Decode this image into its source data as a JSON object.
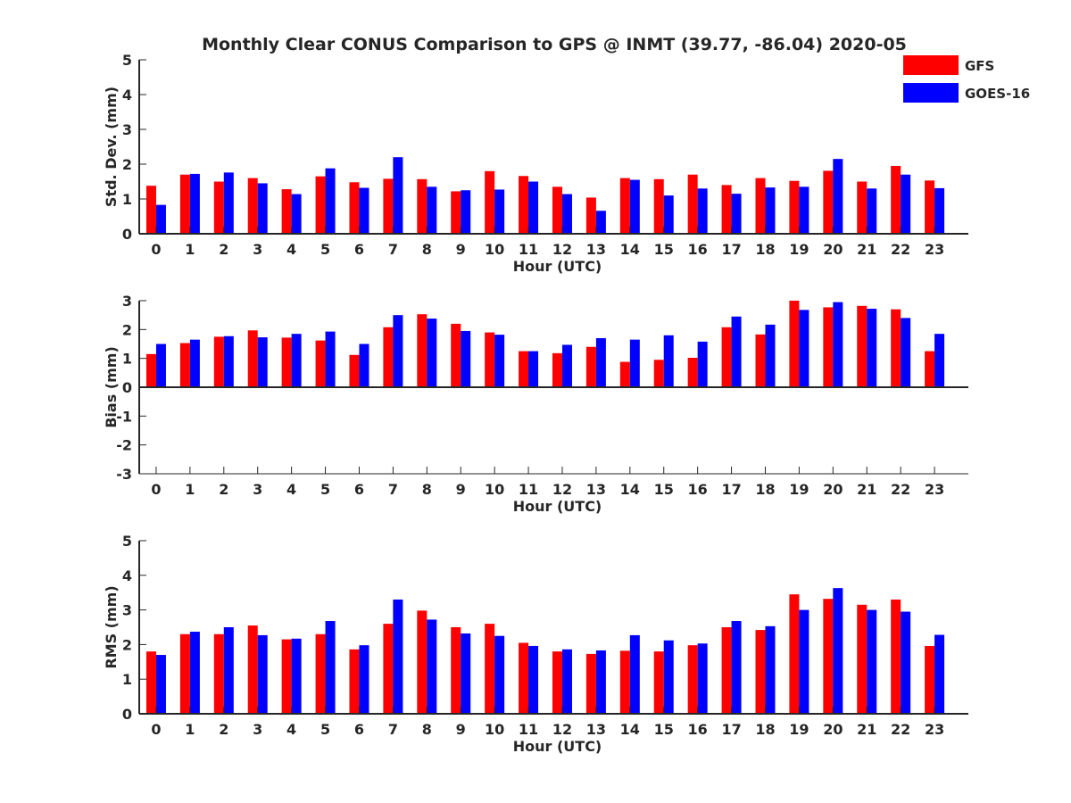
{
  "figure": {
    "title": "Monthly Clear CONUS Comparison to GPS @ INMT (39.77, -86.04) 2020-05"
  },
  "legend": {
    "placement": "top-right",
    "items": [
      {
        "label": "GFS",
        "color": "#ff0000"
      },
      {
        "label": "GOES-16",
        "color": "#0000ff"
      }
    ]
  },
  "chart_data": [
    {
      "type": "bar",
      "title": "Monthly Clear CONUS Comparison to GPS @ INMT (39.77, -86.04) 2020-05",
      "xlabel": "Hour (UTC)",
      "ylabel": "Std. Dev. (mm)",
      "ylim": [
        0,
        5
      ],
      "yticks": [
        "0",
        "1",
        "2",
        "3",
        "4",
        "5"
      ],
      "categories": [
        "0",
        "1",
        "2",
        "3",
        "4",
        "5",
        "6",
        "7",
        "8",
        "9",
        "10",
        "11",
        "12",
        "13",
        "14",
        "15",
        "16",
        "17",
        "18",
        "19",
        "20",
        "21",
        "22",
        "23"
      ],
      "series": [
        {
          "name": "GFS",
          "color": "#ff0000",
          "values": [
            1.38,
            1.7,
            1.5,
            1.6,
            1.28,
            1.65,
            1.48,
            1.58,
            1.57,
            1.22,
            1.8,
            1.66,
            1.35,
            1.04,
            1.6,
            1.57,
            1.7,
            1.4,
            1.6,
            1.52,
            1.81,
            1.5,
            1.95,
            1.53
          ]
        },
        {
          "name": "GOES-16",
          "color": "#0000ff",
          "values": [
            0.83,
            1.72,
            1.76,
            1.45,
            1.14,
            1.88,
            1.32,
            2.2,
            1.35,
            1.25,
            1.27,
            1.5,
            1.14,
            0.66,
            1.55,
            1.1,
            1.3,
            1.15,
            1.33,
            1.35,
            2.15,
            1.3,
            1.7,
            1.31
          ]
        }
      ]
    },
    {
      "type": "bar",
      "xlabel": "Hour (UTC)",
      "ylabel": "Bias (mm)",
      "ylim": [
        -3,
        3
      ],
      "yticks": [
        "-3",
        "-2",
        "-1",
        "0",
        "1",
        "2",
        "3"
      ],
      "categories": [
        "0",
        "1",
        "2",
        "3",
        "4",
        "5",
        "6",
        "7",
        "8",
        "9",
        "10",
        "11",
        "12",
        "13",
        "14",
        "15",
        "16",
        "17",
        "18",
        "19",
        "20",
        "21",
        "22",
        "23"
      ],
      "series": [
        {
          "name": "GFS",
          "color": "#ff0000",
          "values": [
            1.15,
            1.53,
            1.75,
            1.97,
            1.72,
            1.62,
            1.12,
            2.08,
            2.53,
            2.2,
            1.9,
            1.25,
            1.18,
            1.4,
            0.88,
            0.95,
            1.02,
            2.08,
            1.83,
            3.0,
            2.77,
            2.82,
            2.7,
            1.25
          ]
        },
        {
          "name": "GOES-16",
          "color": "#0000ff",
          "values": [
            1.5,
            1.65,
            1.77,
            1.73,
            1.85,
            1.93,
            1.5,
            2.5,
            2.38,
            1.95,
            1.82,
            1.25,
            1.47,
            1.7,
            1.65,
            1.8,
            1.58,
            2.45,
            2.17,
            2.68,
            2.95,
            2.72,
            2.4,
            1.85
          ]
        }
      ]
    },
    {
      "type": "bar",
      "xlabel": "Hour (UTC)",
      "ylabel": "RMS (mm)",
      "ylim": [
        0,
        5
      ],
      "yticks": [
        "0",
        "1",
        "2",
        "3",
        "4",
        "5"
      ],
      "categories": [
        "0",
        "1",
        "2",
        "3",
        "4",
        "5",
        "6",
        "7",
        "8",
        "9",
        "10",
        "11",
        "12",
        "13",
        "14",
        "15",
        "16",
        "17",
        "18",
        "19",
        "20",
        "21",
        "22",
        "23"
      ],
      "series": [
        {
          "name": "GFS",
          "color": "#ff0000",
          "values": [
            1.8,
            2.3,
            2.3,
            2.55,
            2.15,
            2.3,
            1.86,
            2.6,
            2.98,
            2.5,
            2.6,
            2.05,
            1.8,
            1.73,
            1.82,
            1.8,
            1.98,
            2.5,
            2.42,
            3.45,
            3.32,
            3.15,
            3.3,
            1.96
          ]
        },
        {
          "name": "GOES-16",
          "color": "#0000ff",
          "values": [
            1.7,
            2.37,
            2.5,
            2.27,
            2.17,
            2.68,
            1.98,
            3.3,
            2.72,
            2.32,
            2.25,
            1.96,
            1.86,
            1.83,
            2.27,
            2.12,
            2.03,
            2.68,
            2.53,
            3.0,
            3.63,
            3.0,
            2.95,
            2.28
          ]
        }
      ]
    }
  ]
}
